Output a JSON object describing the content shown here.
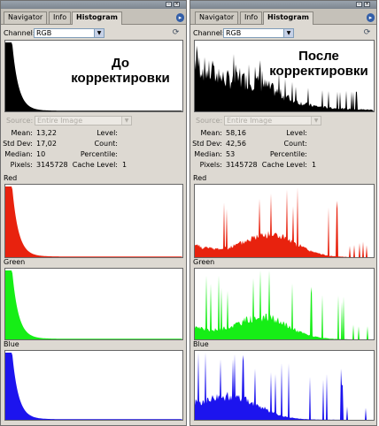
{
  "panels": [
    {
      "tabs": [
        "Navigator",
        "Info",
        "Histogram"
      ],
      "active_tab": "Histogram",
      "channel_label": "Channel:",
      "channel_value": "RGB",
      "overlay_lines": [
        "До",
        "корректировки"
      ],
      "source_label": "Source:",
      "source_value": "Entire Image",
      "stats": {
        "mean_label": "Mean:",
        "mean": "13,22",
        "stddev_label": "Std Dev:",
        "stddev": "17,02",
        "median_label": "Median:",
        "median": "10",
        "pixels_label": "Pixels:",
        "pixels": "3145728",
        "level_label": "Level:",
        "count_label": "Count:",
        "percentile_label": "Percentile:",
        "cache_label": "Cache Level:",
        "cache": "1"
      },
      "channels": [
        {
          "label": "Red",
          "color": "#e8220e"
        },
        {
          "label": "Green",
          "color": "#16ee16"
        },
        {
          "label": "Blue",
          "color": "#1c14ee"
        }
      ]
    },
    {
      "tabs": [
        "Navigator",
        "Info",
        "Histogram"
      ],
      "active_tab": "Histogram",
      "channel_label": "Channel:",
      "channel_value": "RGB",
      "overlay_lines": [
        "После",
        "корректировки"
      ],
      "source_label": "Source:",
      "source_value": "Entire Image",
      "stats": {
        "mean_label": "Mean:",
        "mean": "58,16",
        "stddev_label": "Std Dev:",
        "stddev": "42,56",
        "median_label": "Median:",
        "median": "53",
        "pixels_label": "Pixels:",
        "pixels": "3145728",
        "level_label": "Level:",
        "count_label": "Count:",
        "percentile_label": "Percentile:",
        "cache_label": "Cache Level:",
        "cache": "1"
      },
      "channels": [
        {
          "label": "Red",
          "color": "#e8220e"
        },
        {
          "label": "Green",
          "color": "#16ee16"
        },
        {
          "label": "Blue",
          "color": "#1c14ee"
        }
      ]
    }
  ],
  "icons": {
    "channel_dropdown": "chevron-down-icon",
    "refresh": "refresh-icon",
    "panel_menu": "panel-menu-icon",
    "minimize": "minimize-icon",
    "close": "close-icon"
  }
}
